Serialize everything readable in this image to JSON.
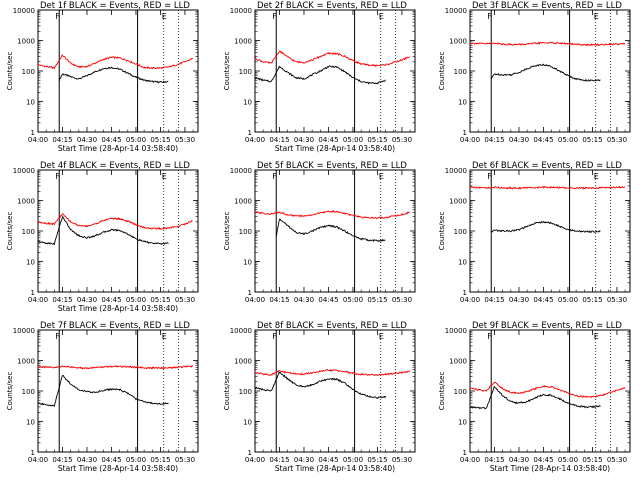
{
  "chart_data": [
    {
      "type": "line",
      "title": "Det 1f BLACK = Events, RED = LLD",
      "xlabel": "Start Time (28-Apr-14 03:58:40)",
      "ylabel": "Counts/sec",
      "x_ticks": [
        "04:00",
        "04:15",
        "04:30",
        "04:45",
        "05:00",
        "05:15",
        "05:30"
      ],
      "y_ticks": [
        "1",
        "10",
        "100",
        "1000",
        "10000"
      ],
      "yscale": "log",
      "ylim": [
        1,
        10000
      ],
      "marker_labels": [
        "F",
        "E"
      ],
      "series": [
        {
          "color": "#000000",
          "x": [
            "04:13",
            "04:15",
            "04:20",
            "04:25",
            "04:30",
            "04:35",
            "04:40",
            "04:45",
            "04:50",
            "04:55",
            "05:00",
            "05:05",
            "05:10",
            "05:15",
            "05:20"
          ],
          "values": [
            50,
            80,
            65,
            55,
            70,
            95,
            120,
            130,
            115,
            85,
            62,
            50,
            45,
            43,
            45
          ]
        },
        {
          "color": "#ff0000",
          "x": [
            "04:00",
            "04:05",
            "04:10",
            "04:15",
            "04:20",
            "04:25",
            "04:30",
            "04:35",
            "04:40",
            "04:45",
            "04:50",
            "04:55",
            "05:00",
            "05:05",
            "05:10",
            "05:15",
            "05:20",
            "05:25",
            "05:30",
            "05:35"
          ],
          "values": [
            160,
            140,
            125,
            330,
            180,
            135,
            140,
            180,
            240,
            280,
            270,
            220,
            170,
            130,
            125,
            125,
            135,
            160,
            200,
            260
          ]
        }
      ]
    },
    {
      "type": "line",
      "title": "Det 2f BLACK = Events, RED = LLD",
      "xlabel": "Start Time (28-Apr-14 03:58:40)",
      "ylabel": "Counts/sec",
      "x_ticks": [
        "04:00",
        "04:15",
        "04:30",
        "04:45",
        "05:00",
        "05:15",
        "05:30"
      ],
      "y_ticks": [
        "1",
        "10",
        "100",
        "1000",
        "10000"
      ],
      "yscale": "log",
      "ylim": [
        1,
        10000
      ],
      "marker_labels": [
        "F",
        "E"
      ],
      "series": [
        {
          "color": "#000000",
          "x": [
            "04:00",
            "04:05",
            "04:10",
            "04:15",
            "04:20",
            "04:25",
            "04:30",
            "04:35",
            "04:40",
            "04:45",
            "04:50",
            "04:55",
            "05:00",
            "05:05",
            "05:10",
            "05:15",
            "05:20"
          ],
          "values": [
            60,
            50,
            45,
            140,
            90,
            60,
            55,
            75,
            100,
            140,
            135,
            95,
            60,
            45,
            40,
            40,
            50
          ]
        },
        {
          "color": "#ff0000",
          "x": [
            "04:00",
            "04:05",
            "04:10",
            "04:15",
            "04:20",
            "04:25",
            "04:30",
            "04:35",
            "04:40",
            "04:45",
            "04:50",
            "04:55",
            "05:00",
            "05:05",
            "05:10",
            "05:15",
            "05:20",
            "05:25",
            "05:30",
            "05:35"
          ],
          "values": [
            260,
            200,
            180,
            450,
            290,
            200,
            190,
            230,
            300,
            380,
            370,
            300,
            220,
            170,
            155,
            150,
            160,
            190,
            230,
            300
          ]
        }
      ]
    },
    {
      "type": "line",
      "title": "Det 3f BLACK = Events, RED = LLD",
      "xlabel": "",
      "ylabel": "Counts/sec",
      "x_ticks": [
        "04:00",
        "04:15",
        "04:30",
        "04:45",
        "05:00",
        "05:15",
        "05:30"
      ],
      "y_ticks": [
        "1",
        "10",
        "100",
        "1000",
        "10000"
      ],
      "yscale": "log",
      "ylim": [
        1,
        10000
      ],
      "marker_labels": [
        "F",
        "E"
      ],
      "series": [
        {
          "color": "#000000",
          "x": [
            "04:13",
            "04:15",
            "04:20",
            "04:25",
            "04:30",
            "04:35",
            "04:40",
            "04:45",
            "04:50",
            "04:55",
            "05:00",
            "05:05",
            "05:10",
            "05:15",
            "05:20"
          ],
          "values": [
            55,
            80,
            75,
            75,
            90,
            120,
            150,
            160,
            140,
            100,
            70,
            55,
            50,
            48,
            50
          ]
        },
        {
          "color": "#ff0000",
          "x": [
            "04:00",
            "04:05",
            "04:10",
            "04:15",
            "04:20",
            "04:25",
            "04:30",
            "04:35",
            "04:40",
            "04:45",
            "04:50",
            "04:55",
            "05:00",
            "05:05",
            "05:10",
            "05:15",
            "05:20",
            "05:25",
            "05:30",
            "05:35"
          ],
          "values": [
            820,
            800,
            780,
            820,
            760,
            740,
            740,
            760,
            800,
            840,
            840,
            820,
            780,
            740,
            720,
            720,
            730,
            750,
            770,
            800
          ]
        }
      ]
    },
    {
      "type": "line",
      "title": "Det 4f BLACK = Events, RED = LLD",
      "xlabel": "Start Time (28-Apr-14 03:58:40)",
      "ylabel": "Counts/sec",
      "x_ticks": [
        "04:00",
        "04:15",
        "04:30",
        "04:45",
        "05:00",
        "05:15",
        "05:30"
      ],
      "y_ticks": [
        "1",
        "10",
        "100",
        "1000",
        "10000"
      ],
      "yscale": "log",
      "ylim": [
        1,
        10000
      ],
      "marker_labels": [
        "F",
        "E"
      ],
      "series": [
        {
          "color": "#000000",
          "x": [
            "04:00",
            "04:05",
            "04:10",
            "04:15",
            "04:20",
            "04:25",
            "04:30",
            "04:35",
            "04:40",
            "04:45",
            "04:50",
            "04:55",
            "05:00",
            "05:05",
            "05:10",
            "05:15",
            "05:20"
          ],
          "values": [
            45,
            40,
            38,
            300,
            110,
            70,
            60,
            70,
            90,
            110,
            105,
            80,
            55,
            45,
            40,
            38,
            40
          ]
        },
        {
          "color": "#ff0000",
          "x": [
            "04:00",
            "04:05",
            "04:10",
            "04:15",
            "04:20",
            "04:25",
            "04:30",
            "04:35",
            "04:40",
            "04:45",
            "04:50",
            "04:55",
            "05:00",
            "05:05",
            "05:10",
            "05:15",
            "05:20",
            "05:25",
            "05:30",
            "05:35"
          ],
          "values": [
            200,
            180,
            170,
            360,
            200,
            150,
            145,
            170,
            220,
            260,
            250,
            210,
            160,
            130,
            120,
            120,
            125,
            140,
            170,
            220
          ]
        }
      ]
    },
    {
      "type": "line",
      "title": "Det 5f BLACK = Events, RED = LLD",
      "xlabel": "",
      "ylabel": "Counts/sec",
      "x_ticks": [
        "04:00",
        "04:15",
        "04:30",
        "04:45",
        "05:00",
        "05:15",
        "05:30"
      ],
      "y_ticks": [
        "1",
        "10",
        "100",
        "1000",
        "10000"
      ],
      "yscale": "log",
      "ylim": [
        1,
        10000
      ],
      "marker_labels": [
        "F",
        "E"
      ],
      "series": [
        {
          "color": "#000000",
          "x": [
            "04:13",
            "04:15",
            "04:20",
            "04:25",
            "04:30",
            "04:35",
            "04:40",
            "04:45",
            "04:50",
            "04:55",
            "05:00",
            "05:05",
            "05:10",
            "05:15",
            "05:20"
          ],
          "values": [
            65,
            250,
            150,
            90,
            80,
            100,
            130,
            150,
            135,
            100,
            70,
            55,
            50,
            48,
            50
          ]
        },
        {
          "color": "#ff0000",
          "x": [
            "04:00",
            "04:05",
            "04:10",
            "04:15",
            "04:20",
            "04:25",
            "04:30",
            "04:35",
            "04:40",
            "04:45",
            "04:50",
            "04:55",
            "05:00",
            "05:05",
            "05:10",
            "05:15",
            "05:20",
            "05:25",
            "05:30",
            "05:35"
          ],
          "values": [
            420,
            380,
            360,
            420,
            340,
            310,
            310,
            340,
            390,
            440,
            430,
            380,
            320,
            280,
            270,
            270,
            280,
            310,
            350,
            410
          ]
        }
      ]
    },
    {
      "type": "line",
      "title": "Det 6f BLACK = Events, RED = LLD",
      "xlabel": "",
      "ylabel": "Counts/sec",
      "x_ticks": [
        "04:00",
        "04:15",
        "04:30",
        "04:45",
        "05:00",
        "05:15",
        "05:30"
      ],
      "y_ticks": [
        "1",
        "10",
        "100",
        "1000",
        "10000"
      ],
      "yscale": "log",
      "ylim": [
        1,
        10000
      ],
      "marker_labels": [
        "F",
        "E"
      ],
      "series": [
        {
          "color": "#000000",
          "x": [
            "04:13",
            "04:15",
            "04:20",
            "04:25",
            "04:30",
            "04:35",
            "04:40",
            "04:45",
            "04:50",
            "04:55",
            "05:00",
            "05:05",
            "05:10",
            "05:15",
            "05:20"
          ],
          "values": [
            95,
            105,
            100,
            100,
            110,
            140,
            180,
            200,
            180,
            140,
            110,
            100,
            95,
            95,
            100
          ]
        },
        {
          "color": "#ff0000",
          "x": [
            "04:00",
            "04:05",
            "04:10",
            "04:15",
            "04:20",
            "04:25",
            "04:30",
            "04:35",
            "04:40",
            "04:45",
            "04:50",
            "04:55",
            "05:00",
            "05:05",
            "05:10",
            "05:15",
            "05:20",
            "05:25",
            "05:30",
            "05:35"
          ],
          "values": [
            2700,
            2650,
            2600,
            2700,
            2600,
            2550,
            2550,
            2600,
            2650,
            2700,
            2700,
            2650,
            2600,
            2550,
            2550,
            2550,
            2600,
            2650,
            2700,
            2750
          ]
        }
      ]
    },
    {
      "type": "line",
      "title": "Det 7f BLACK = Events, RED = LLD",
      "xlabel": "Start Time (28-Apr-14 03:58:40)",
      "ylabel": "Counts/sec",
      "x_ticks": [
        "04:00",
        "04:15",
        "04:30",
        "04:45",
        "05:00",
        "05:15",
        "05:30"
      ],
      "y_ticks": [
        "1",
        "10",
        "100",
        "1000",
        "10000"
      ],
      "yscale": "log",
      "ylim": [
        1,
        10000
      ],
      "marker_labels": [
        "F",
        "E"
      ],
      "series": [
        {
          "color": "#000000",
          "x": [
            "04:00",
            "04:05",
            "04:10",
            "04:15",
            "04:20",
            "04:25",
            "04:30",
            "04:35",
            "04:40",
            "04:45",
            "04:50",
            "04:55",
            "05:00",
            "05:05",
            "05:10",
            "05:15",
            "05:20"
          ],
          "values": [
            40,
            35,
            33,
            330,
            170,
            110,
            95,
            90,
            105,
            115,
            110,
            85,
            55,
            45,
            40,
            38,
            40
          ]
        },
        {
          "color": "#ff0000",
          "x": [
            "04:00",
            "04:05",
            "04:10",
            "04:15",
            "04:20",
            "04:25",
            "04:30",
            "04:35",
            "04:40",
            "04:45",
            "04:50",
            "04:55",
            "05:00",
            "05:05",
            "05:10",
            "05:15",
            "05:20",
            "05:25",
            "05:30",
            "05:35"
          ],
          "values": [
            620,
            600,
            580,
            650,
            600,
            570,
            570,
            580,
            610,
            640,
            640,
            620,
            600,
            580,
            570,
            570,
            580,
            600,
            620,
            650
          ]
        }
      ]
    },
    {
      "type": "line",
      "title": "Det 8f BLACK = Events, RED = LLD",
      "xlabel": "Start Time (28-Apr-14 03:58:40)",
      "ylabel": "Counts/sec",
      "x_ticks": [
        "04:00",
        "04:15",
        "04:30",
        "04:45",
        "05:00",
        "05:15",
        "05:30"
      ],
      "y_ticks": [
        "1",
        "10",
        "100",
        "1000",
        "10000"
      ],
      "yscale": "log",
      "ylim": [
        1,
        10000
      ],
      "marker_labels": [
        "F",
        "E"
      ],
      "series": [
        {
          "color": "#000000",
          "x": [
            "04:00",
            "04:05",
            "04:10",
            "04:15",
            "04:20",
            "04:25",
            "04:30",
            "04:35",
            "04:40",
            "04:45",
            "04:50",
            "04:55",
            "05:00",
            "05:05",
            "05:10",
            "05:15",
            "05:20"
          ],
          "values": [
            130,
            110,
            100,
            420,
            250,
            160,
            140,
            160,
            210,
            250,
            240,
            180,
            110,
            80,
            65,
            60,
            65
          ]
        },
        {
          "color": "#ff0000",
          "x": [
            "04:00",
            "04:05",
            "04:10",
            "04:15",
            "04:20",
            "04:25",
            "04:30",
            "04:35",
            "04:40",
            "04:45",
            "04:50",
            "04:55",
            "05:00",
            "05:05",
            "05:10",
            "05:15",
            "05:20",
            "05:25",
            "05:30",
            "05:35"
          ],
          "values": [
            400,
            360,
            340,
            460,
            400,
            360,
            360,
            390,
            440,
            480,
            470,
            430,
            380,
            350,
            340,
            340,
            350,
            370,
            400,
            440
          ]
        }
      ]
    },
    {
      "type": "line",
      "title": "Det 9f BLACK = Events, RED = LLD",
      "xlabel": "Start Time (28-Apr-14 03:58:40)",
      "ylabel": "Counts/sec",
      "x_ticks": [
        "04:00",
        "04:15",
        "04:30",
        "04:45",
        "05:00",
        "05:15",
        "05:30"
      ],
      "y_ticks": [
        "1",
        "10",
        "100",
        "1000",
        "10000"
      ],
      "yscale": "log",
      "ylim": [
        1,
        10000
      ],
      "marker_labels": [
        "F",
        "E"
      ],
      "series": [
        {
          "color": "#000000",
          "x": [
            "04:00",
            "04:05",
            "04:10",
            "04:15",
            "04:20",
            "04:25",
            "04:30",
            "04:35",
            "04:40",
            "04:45",
            "04:50",
            "04:55",
            "05:00",
            "05:05",
            "05:10",
            "05:15",
            "05:20"
          ],
          "values": [
            30,
            28,
            27,
            140,
            70,
            45,
            40,
            45,
            60,
            75,
            72,
            55,
            40,
            33,
            30,
            30,
            32
          ]
        },
        {
          "color": "#ff0000",
          "x": [
            "04:00",
            "04:05",
            "04:10",
            "04:15",
            "04:20",
            "04:25",
            "04:30",
            "04:35",
            "04:40",
            "04:45",
            "04:50",
            "04:55",
            "05:00",
            "05:05",
            "05:10",
            "05:15",
            "05:20",
            "05:25",
            "05:30",
            "05:35"
          ],
          "values": [
            130,
            110,
            100,
            200,
            120,
            90,
            85,
            95,
            120,
            140,
            135,
            110,
            85,
            70,
            65,
            65,
            70,
            85,
            105,
            130
          ]
        }
      ]
    }
  ]
}
